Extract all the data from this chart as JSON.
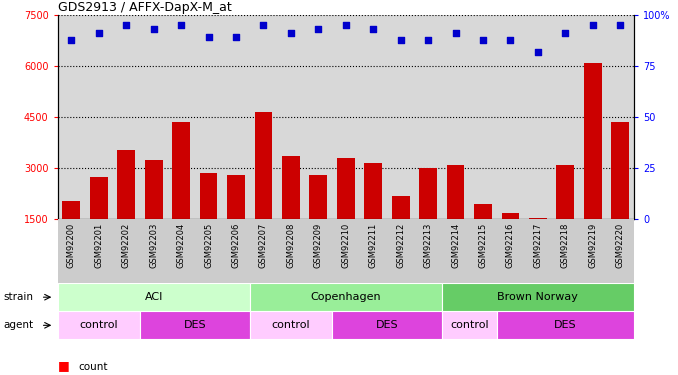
{
  "title": "GDS2913 / AFFX-DapX-M_at",
  "samples": [
    "GSM92200",
    "GSM92201",
    "GSM92202",
    "GSM92203",
    "GSM92204",
    "GSM92205",
    "GSM92206",
    "GSM92207",
    "GSM92208",
    "GSM92209",
    "GSM92210",
    "GSM92211",
    "GSM92212",
    "GSM92213",
    "GSM92214",
    "GSM92215",
    "GSM92216",
    "GSM92217",
    "GSM92218",
    "GSM92219",
    "GSM92220"
  ],
  "counts": [
    2050,
    2750,
    3550,
    3250,
    4350,
    2850,
    2800,
    4650,
    3350,
    2800,
    3300,
    3150,
    2200,
    3000,
    3100,
    1950,
    1700,
    1550,
    3100,
    6100,
    4350
  ],
  "percentiles": [
    88,
    91,
    95,
    93,
    95,
    89,
    89,
    95,
    91,
    93,
    95,
    93,
    88,
    88,
    91,
    88,
    88,
    82,
    91,
    95,
    95
  ],
  "ylim_left": [
    1500,
    7500
  ],
  "ylim_right": [
    0,
    100
  ],
  "yticks_left": [
    1500,
    3000,
    4500,
    6000,
    7500
  ],
  "yticks_right": [
    0,
    25,
    50,
    75,
    100
  ],
  "bar_color": "#cc0000",
  "dot_color": "#0000cc",
  "strain_spans": [
    [
      0,
      6,
      "ACI",
      "#ccffcc"
    ],
    [
      7,
      13,
      "Copenhagen",
      "#99ee99"
    ],
    [
      14,
      20,
      "Brown Norway",
      "#66cc66"
    ]
  ],
  "agent_spans": [
    [
      0,
      2,
      "control",
      "#ffccff"
    ],
    [
      3,
      6,
      "DES",
      "#dd44dd"
    ],
    [
      7,
      9,
      "control",
      "#ffccff"
    ],
    [
      10,
      13,
      "DES",
      "#dd44dd"
    ],
    [
      14,
      15,
      "control",
      "#ffccff"
    ],
    [
      16,
      20,
      "DES",
      "#dd44dd"
    ]
  ],
  "background_color": "#ffffff",
  "plot_bg_color": "#d8d8d8"
}
